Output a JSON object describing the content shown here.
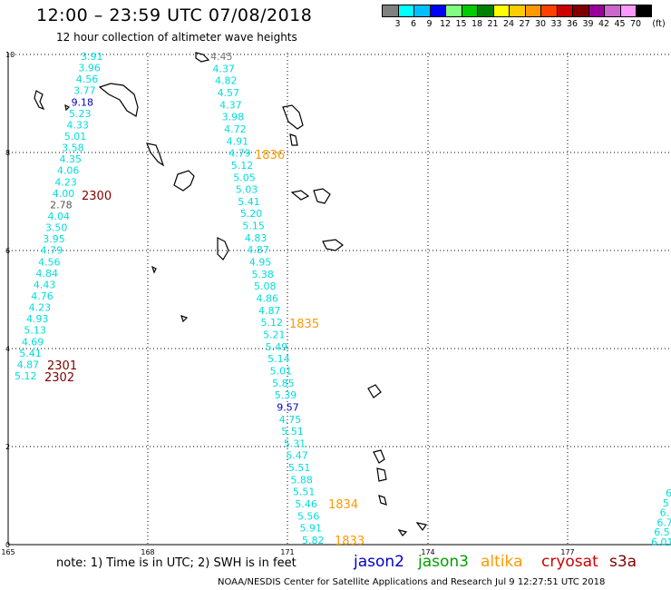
{
  "title": "12:00 – 23:59 UTC 07/08/2018",
  "subtitle": "12 hour collection of altimeter wave heights",
  "colorbar": {
    "unit": "(ft)",
    "colors": [
      "#808080",
      "#00ffff",
      "#00bfff",
      "#0000ff",
      "#80ff80",
      "#00cc00",
      "#008000",
      "#ffff00",
      "#ffcc00",
      "#ff9900",
      "#ff4000",
      "#cc0000",
      "#800000",
      "#990099",
      "#cc66cc",
      "#ff99ff",
      "#000000"
    ],
    "labels": [
      "3",
      "6",
      "9",
      "12",
      "15",
      "18",
      "21",
      "24",
      "27",
      "30",
      "33",
      "36",
      "39",
      "42",
      "45",
      "70"
    ]
  },
  "axes": {
    "x_ticks": [
      "165",
      "168",
      "171",
      "174",
      "177"
    ],
    "y_ticks": [
      "0",
      "2",
      "4",
      "6",
      "8",
      "10"
    ]
  },
  "tracks": {
    "track_a": [
      "3.91",
      "3.96",
      "4.56",
      "3.77",
      "9.18",
      "5.23",
      "4.33",
      "5.01",
      "3.58",
      "4.35",
      "4.06",
      "4.23",
      "4.00",
      "2.78",
      "4.04",
      "3.50",
      "3.95",
      "4.79",
      "4.56",
      "4.84",
      "4.43",
      "4.76",
      "4.23",
      "4.93",
      "5.13",
      "4.69",
      "5.41",
      "4.87",
      "5.12"
    ],
    "track_b": [
      "4.45",
      "4.37",
      "4.82",
      "4.57",
      "4.37",
      "3.98",
      "4.72",
      "4.91",
      "4.79",
      "5.12",
      "5.05",
      "5.03",
      "5.41",
      "5.20",
      "5.15",
      "4.83",
      "4.87",
      "4.95",
      "5.38",
      "5.08",
      "4.86",
      "4.87",
      "5.12",
      "5.21",
      "5.49",
      "5.14",
      "5.01",
      "5.85",
      "5.39",
      "9.57",
      "4.75",
      "5.51",
      "5.31",
      "5.47",
      "5.51",
      "5.88",
      "5.51",
      "5.46",
      "5.56",
      "5.91",
      "5.82"
    ],
    "track_c": [
      "6",
      "5",
      "6.",
      "6.7",
      "6.5",
      "6.01"
    ]
  },
  "time_labels": {
    "t2300": "2300",
    "t2301": "2301",
    "t2302": "2302",
    "t1836": "1836",
    "t1835": "1835",
    "t1834": "1834",
    "t1833": "1833"
  },
  "note": "note:  1) Time is in UTC;  2) SWH is in feet",
  "satellites": [
    {
      "name": "jason2",
      "color": "#0000cc"
    },
    {
      "name": "jason3",
      "color": "#00a000"
    },
    {
      "name": "altika",
      "color": "#ff9900"
    },
    {
      "name": "cryosat",
      "color": "#cc0000"
    },
    {
      "name": "s3a",
      "color": "#800000"
    }
  ],
  "credit": "NOAA/NESDIS Center for Satellite Applications and Research   Jul  9 12:27:51 UTC 2018"
}
